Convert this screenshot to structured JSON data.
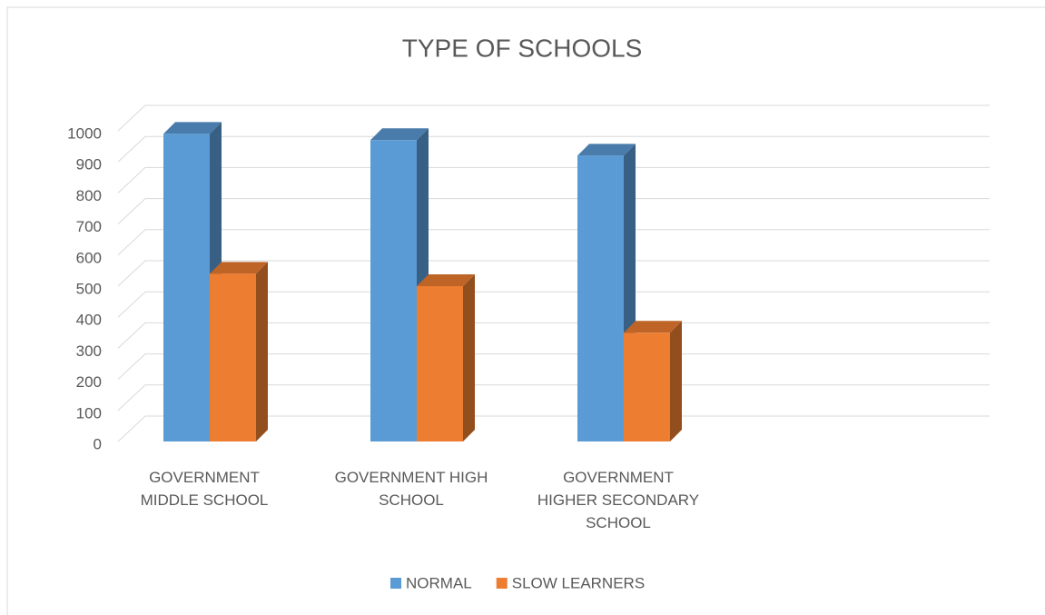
{
  "chart_data": {
    "type": "bar3d",
    "title": "TYPE OF SCHOOLS",
    "categories": [
      "GOVERNMENT MIDDLE SCHOOL",
      "GOVERNMENT HIGH SCHOOL",
      "GOVERNMENT HIGHER SECONDARY SCHOOL"
    ],
    "series": [
      {
        "name": "NORMAL",
        "color": "#5b9bd5",
        "values": [
          990,
          970,
          920
        ]
      },
      {
        "name": "SLOW LEARNERS",
        "color": "#ed7d31",
        "values": [
          540,
          500,
          350
        ]
      }
    ],
    "ylim": [
      0,
      1000
    ],
    "yticks": [
      0,
      100,
      200,
      300,
      400,
      500,
      600,
      700,
      800,
      900,
      1000
    ],
    "grid": true,
    "legend": "bottom"
  }
}
